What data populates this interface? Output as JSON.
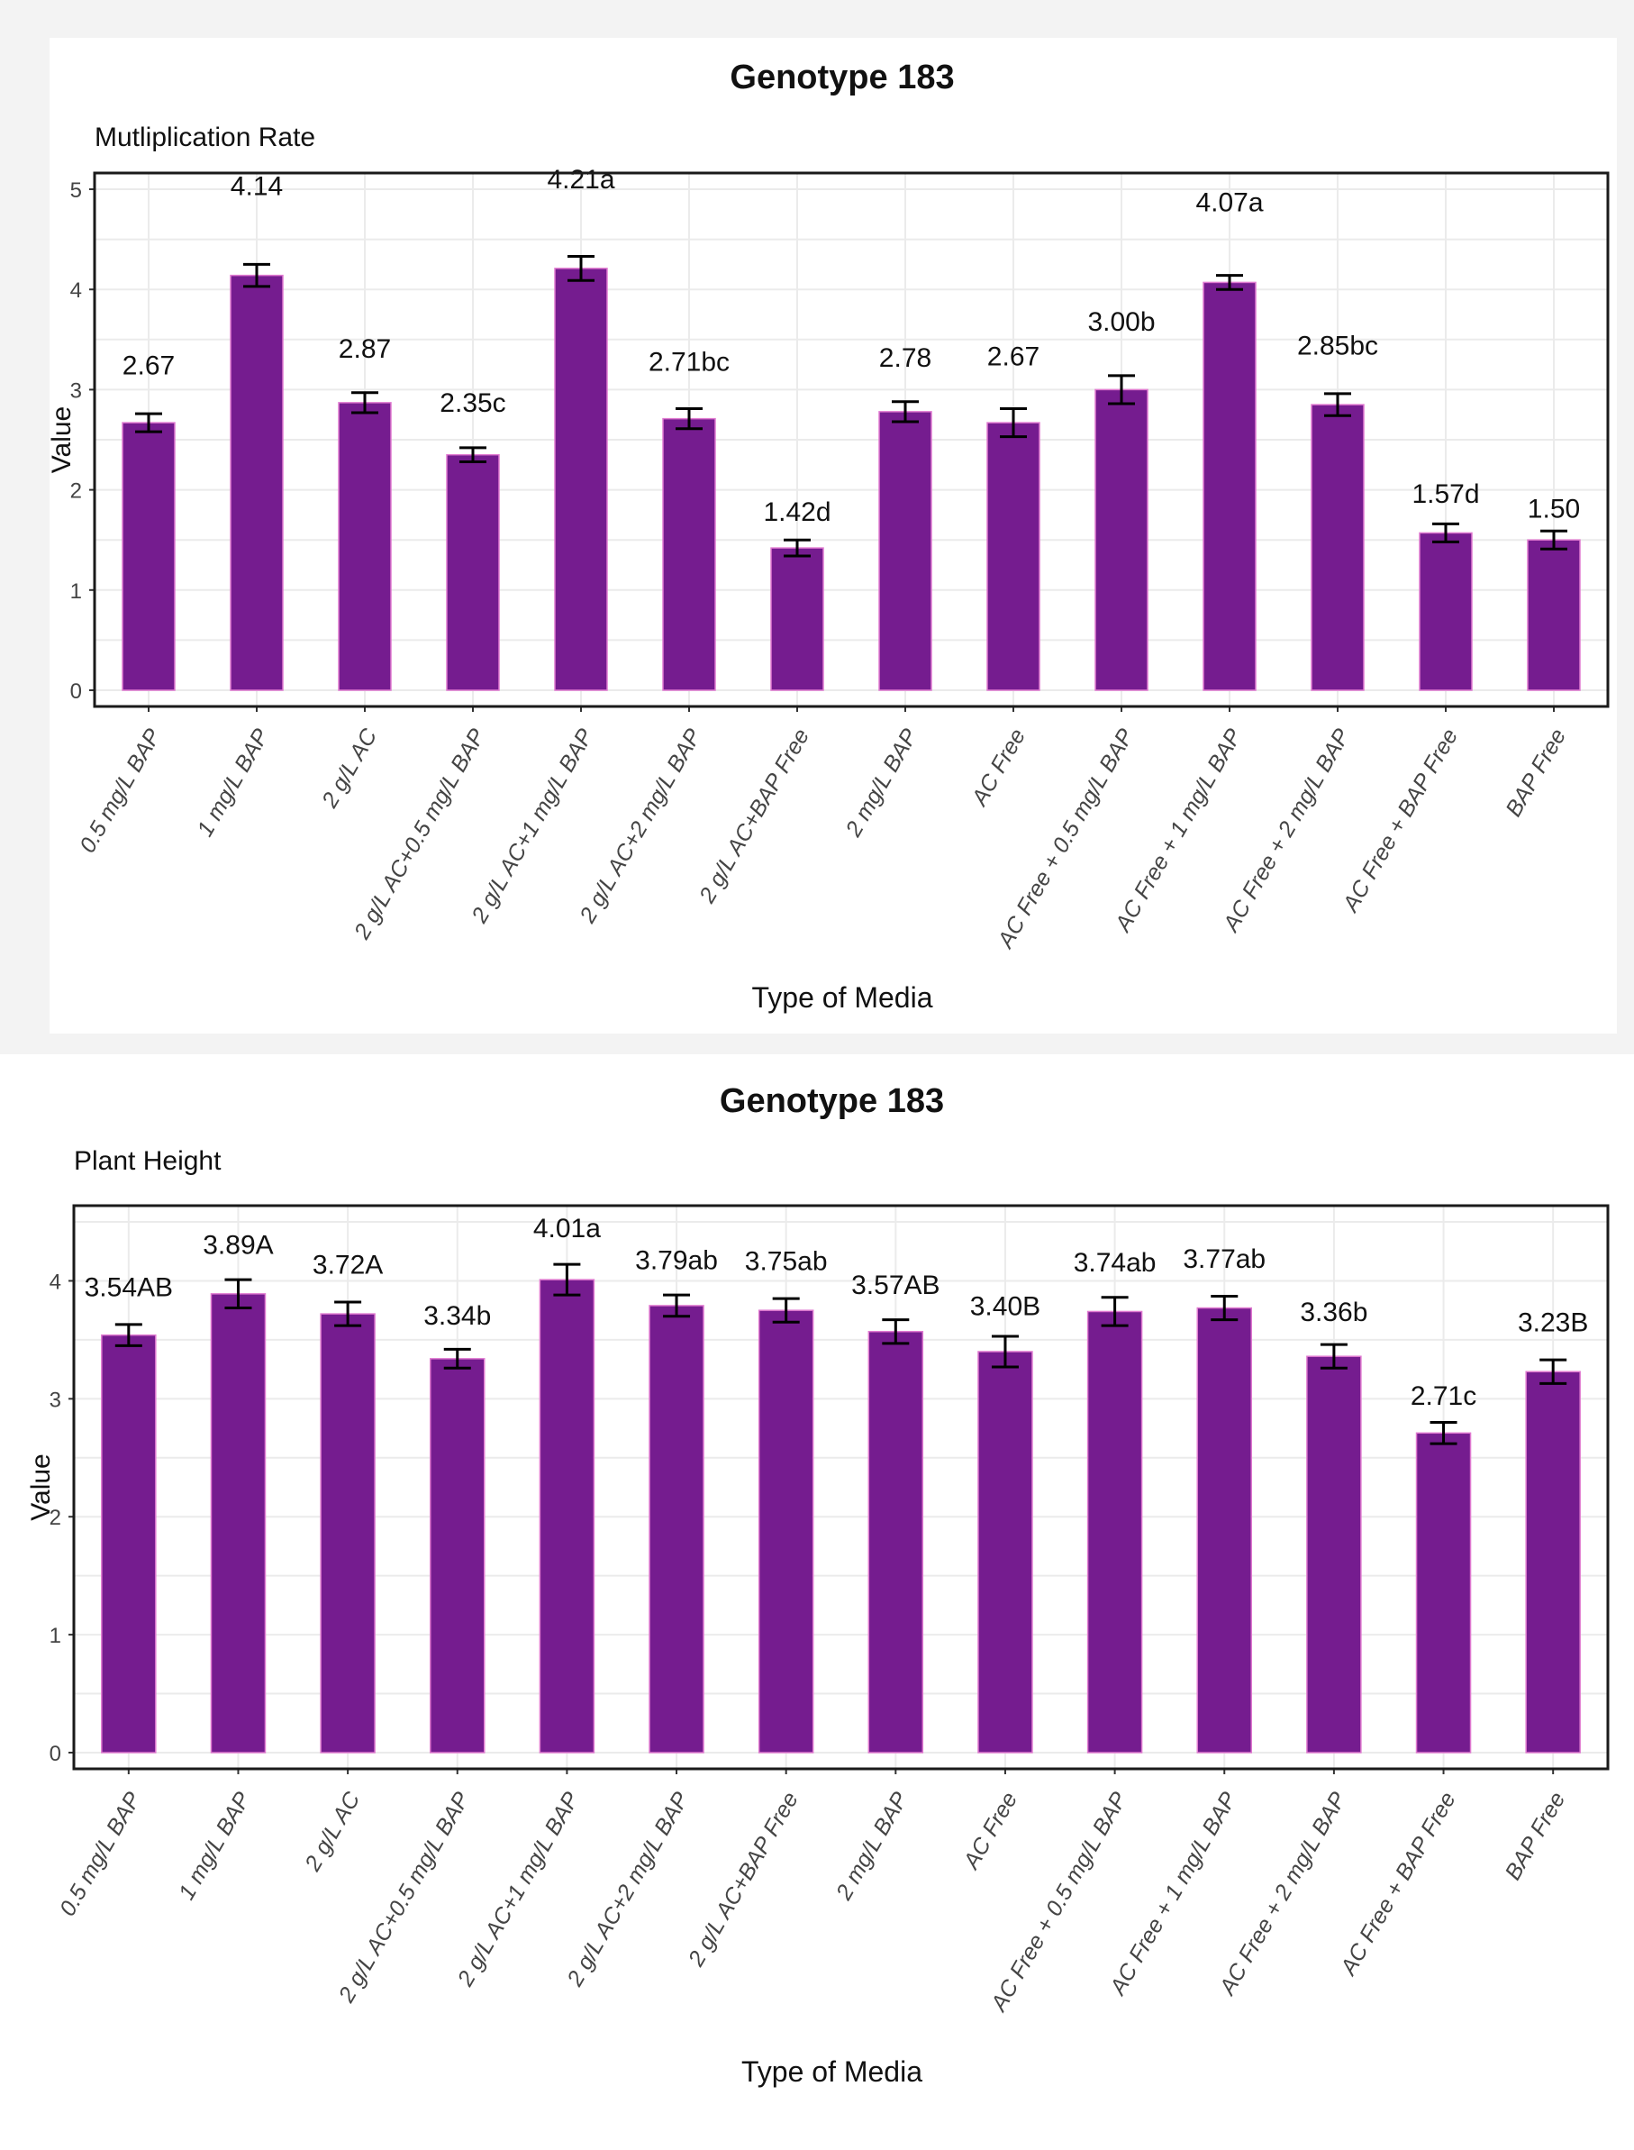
{
  "chart_data": [
    {
      "type": "bar",
      "title": "Genotype 183",
      "subtitle": "Mutliplication Rate",
      "xlabel": "Type of Media",
      "ylabel": "Value",
      "ylim": [
        0,
        5
      ],
      "yticks": [
        0,
        1,
        2,
        3,
        4,
        5
      ],
      "grid": true,
      "bar_color": "#751c8f",
      "categories": [
        "0.5 mg/L BAP",
        "1 mg/L BAP",
        "2 g/L AC",
        "2 g/L AC+0.5 mg/L BAP",
        "2 g/L AC+1 mg/L BAP",
        "2 g/L AC+2 mg/L BAP",
        "2 g/L AC+BAP Free",
        "2 mg/L BAP",
        "AC Free",
        "AC Free + 0.5 mg/L BAP",
        "AC Free + 1 mg/L BAP",
        "AC Free + 2 mg/L BAP",
        "AC Free + BAP Free",
        "BAP Free"
      ],
      "values": [
        2.67,
        4.14,
        2.87,
        2.35,
        4.21,
        2.71,
        1.42,
        2.78,
        2.67,
        3.0,
        4.07,
        2.85,
        1.57,
        1.5
      ],
      "errors": [
        0.09,
        0.11,
        0.1,
        0.07,
        0.12,
        0.1,
        0.08,
        0.1,
        0.14,
        0.14,
        0.07,
        0.11,
        0.09,
        0.09
      ],
      "labels": [
        "2.67",
        "4.14",
        "2.87",
        "2.35c",
        "4.21a",
        "2.71bc",
        "1.42d",
        "2.78",
        "2.67",
        "3.00b",
        "4.07a",
        "2.85bc",
        "1.57d",
        "1.50"
      ],
      "label_offsets": [
        0.48,
        0.8,
        0.45,
        0.43,
        0.8,
        0.48,
        0.27,
        0.45,
        0.57,
        0.59,
        0.71,
        0.5,
        0.3,
        0.22
      ]
    },
    {
      "type": "bar",
      "title": "Genotype 183",
      "subtitle": "Plant Height",
      "xlabel": "Type of Media",
      "ylabel": "Value",
      "ylim": [
        0,
        4.5
      ],
      "yticks": [
        0,
        1,
        2,
        3,
        4
      ],
      "grid": true,
      "bar_color": "#751c8f",
      "categories": [
        "0.5 mg/L BAP",
        "1 mg/L BAP",
        "2 g/L AC",
        "2 g/L AC+0.5 mg/L BAP",
        "2 g/L AC+1 mg/L BAP",
        "2 g/L AC+2 mg/L BAP",
        "2 g/L AC+BAP Free",
        "2 mg/L BAP",
        "AC Free",
        "AC Free + 0.5 mg/L BAP",
        "AC Free + 1 mg/L BAP",
        "AC Free + 2 mg/L BAP",
        "AC Free + BAP Free",
        "BAP Free"
      ],
      "values": [
        3.54,
        3.89,
        3.72,
        3.34,
        4.01,
        3.79,
        3.75,
        3.57,
        3.4,
        3.74,
        3.77,
        3.36,
        2.71,
        3.23
      ],
      "errors": [
        0.09,
        0.12,
        0.1,
        0.08,
        0.13,
        0.09,
        0.1,
        0.1,
        0.13,
        0.12,
        0.1,
        0.1,
        0.09,
        0.1
      ],
      "labels": [
        "3.54AB",
        "3.89A",
        "3.72A",
        "3.34b",
        "4.01a",
        "3.79ab",
        "3.75ab",
        "3.57AB",
        "3.40B",
        "3.74ab",
        "3.77ab",
        "3.36b",
        "2.71c",
        "3.23B"
      ],
      "label_offsets": [
        0.33,
        0.34,
        0.34,
        0.29,
        0.36,
        0.31,
        0.34,
        0.32,
        0.31,
        0.34,
        0.34,
        0.3,
        0.24,
        0.34
      ]
    }
  ]
}
